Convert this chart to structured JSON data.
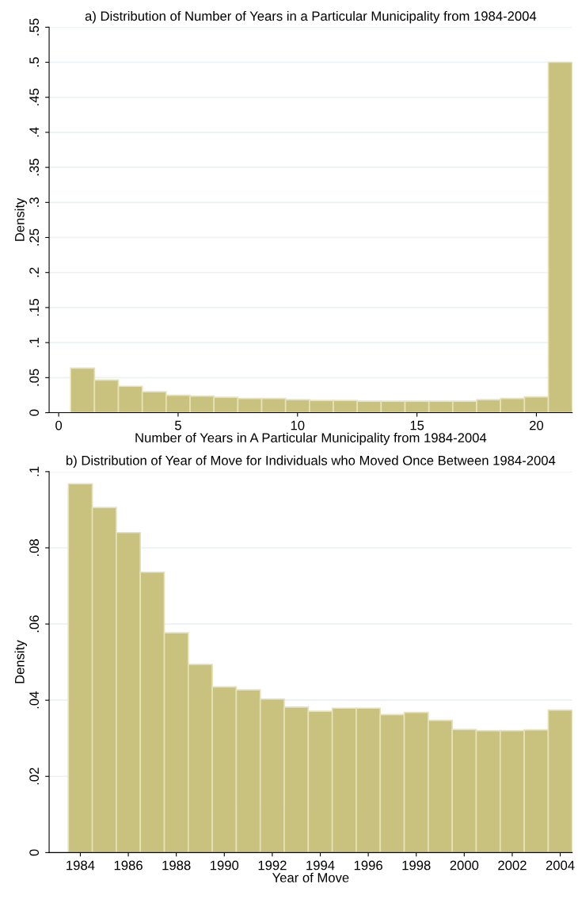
{
  "chart_data": [
    {
      "type": "histogram",
      "title": "a) Distribution of Number of Years in a Particular Municipality from 1984-2004",
      "xlabel": "Number of Years in A Particular Municipality from 1984-2004",
      "ylabel": "Density",
      "bins": [
        0.5,
        1.5,
        2.5,
        3.5,
        4.5,
        5.5,
        6.5,
        7.5,
        8.5,
        9.5,
        10.5,
        11.5,
        12.5,
        13.5,
        14.5,
        15.5,
        16.5,
        17.5,
        18.5,
        19.5,
        20.5,
        21.5
      ],
      "values": [
        0.0635,
        0.0466,
        0.0376,
        0.0298,
        0.0247,
        0.0236,
        0.0219,
        0.0202,
        0.0202,
        0.0185,
        0.0174,
        0.0174,
        0.0163,
        0.0163,
        0.0163,
        0.0163,
        0.0163,
        0.0185,
        0.0202,
        0.0225,
        0.5
      ],
      "color": "#c9c27f",
      "xlim": [
        -0.4,
        21.5
      ],
      "ylim": [
        0,
        0.55
      ],
      "xticks": [
        0,
        5,
        10,
        15,
        20
      ],
      "yticks": [
        0,
        {
          "value": 0.05,
          "label": ".05"
        },
        {
          "value": 0.1,
          "label": ".1"
        },
        {
          "value": 0.15,
          "label": ".15"
        },
        {
          "value": 0.2,
          "label": ".2"
        },
        {
          "value": 0.25,
          "label": ".25"
        },
        {
          "value": 0.3,
          "label": ".3"
        },
        {
          "value": 0.35,
          "label": ".35"
        },
        {
          "value": 0.4,
          "label": ".4"
        },
        {
          "value": 0.45,
          "label": ".45"
        },
        {
          "value": 0.5,
          "label": ".5"
        },
        {
          "value": 0.55,
          "label": ".55"
        }
      ],
      "grid": "y"
    },
    {
      "type": "histogram",
      "title": "b) Distribution of Year of Move for Individuals who Moved Once Between 1984-2004",
      "xlabel": "Year of Move",
      "ylabel": "Density",
      "bins": [
        1983.5,
        1984.5,
        1985.5,
        1986.5,
        1987.5,
        1988.5,
        1989.5,
        1990.5,
        1991.5,
        1992.5,
        1993.5,
        1994.5,
        1995.5,
        1996.5,
        1997.5,
        1998.5,
        1999.5,
        2000.5,
        2001.5,
        2002.5,
        2003.5,
        2004.5
      ],
      "values": [
        0.0968,
        0.0906,
        0.084,
        0.0736,
        0.0577,
        0.0494,
        0.0435,
        0.0427,
        0.0403,
        0.0382,
        0.0371,
        0.0379,
        0.0379,
        0.0362,
        0.0368,
        0.0347,
        0.0323,
        0.032,
        0.032,
        0.0322,
        0.0374
      ],
      "color": "#c9c27f",
      "xlim": [
        1982.7,
        2004.5
      ],
      "ylim": [
        0,
        0.1
      ],
      "xticks": [
        1984,
        1986,
        1988,
        1990,
        1992,
        1994,
        1996,
        1998,
        2000,
        2002,
        2004
      ],
      "yticks": [
        0,
        {
          "value": 0.02,
          "label": ".02"
        },
        {
          "value": 0.04,
          "label": ".04"
        },
        {
          "value": 0.06,
          "label": ".06"
        },
        {
          "value": 0.08,
          "label": ".08"
        },
        {
          "value": 0.1,
          "label": ".1"
        }
      ],
      "grid": "y"
    }
  ]
}
